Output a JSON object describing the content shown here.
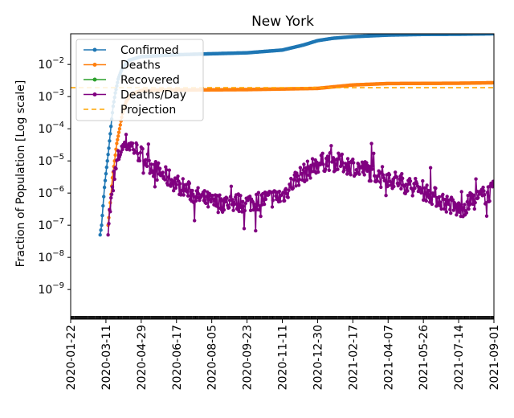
{
  "chart_data": {
    "type": "line",
    "title": "New York",
    "ylabel": "Fraction of Population [Log scale]",
    "xlabel": "",
    "yscale": "log",
    "ylim": [
      1.2e-10,
      0.09
    ],
    "xlim": [
      "2020-01-22",
      "2021-09-01"
    ],
    "x_ticks": [
      "2020-01-22",
      "2020-03-11",
      "2020-04-29",
      "2020-06-17",
      "2020-08-05",
      "2020-09-23",
      "2020-11-11",
      "2020-12-30",
      "2021-02-17",
      "2021-04-07",
      "2021-05-26",
      "2021-07-14",
      "2021-09-01"
    ],
    "y_ticks": [
      {
        "value": 1e-09,
        "base": "10",
        "exp": "−9"
      },
      {
        "value": 1e-08,
        "base": "10",
        "exp": "−8"
      },
      {
        "value": 1e-07,
        "base": "10",
        "exp": "−7"
      },
      {
        "value": 1e-06,
        "base": "10",
        "exp": "−6"
      },
      {
        "value": 1e-05,
        "base": "10",
        "exp": "−5"
      },
      {
        "value": 0.0001,
        "base": "10",
        "exp": "−4"
      },
      {
        "value": 0.001,
        "base": "10",
        "exp": "−3"
      },
      {
        "value": 0.01,
        "base": "10",
        "exp": "−2"
      }
    ],
    "grid": false,
    "legend_position": "top-left",
    "series": [
      {
        "name": "Confirmed",
        "color": "#1f77b4",
        "marker": "dot",
        "anchors": [
          [
            "2020-03-03",
            5e-08
          ],
          [
            "2020-03-05",
            1e-07
          ],
          [
            "2020-03-07",
            4e-07
          ],
          [
            "2020-03-09",
            1.5e-06
          ],
          [
            "2020-03-11",
            4e-06
          ],
          [
            "2020-03-13",
            1e-05
          ],
          [
            "2020-03-15",
            2.5e-05
          ],
          [
            "2020-03-17",
            7e-05
          ],
          [
            "2020-03-19",
            0.0002
          ],
          [
            "2020-03-21",
            0.0005
          ],
          [
            "2020-03-24",
            0.0013
          ],
          [
            "2020-03-28",
            0.0035
          ],
          [
            "2020-04-03",
            0.008
          ],
          [
            "2020-04-12",
            0.0135
          ],
          [
            "2020-04-29",
            0.0175
          ],
          [
            "2020-06-17",
            0.02
          ],
          [
            "2020-08-05",
            0.0215
          ],
          [
            "2020-09-23",
            0.023
          ],
          [
            "2020-11-11",
            0.028
          ],
          [
            "2020-12-10",
            0.04
          ],
          [
            "2020-12-30",
            0.055
          ],
          [
            "2021-01-20",
            0.065
          ],
          [
            "2021-02-17",
            0.073
          ],
          [
            "2021-04-07",
            0.082
          ],
          [
            "2021-05-26",
            0.086
          ],
          [
            "2021-07-14",
            0.087
          ],
          [
            "2021-09-01",
            0.09
          ]
        ]
      },
      {
        "name": "Deaths",
        "color": "#ff7f0e",
        "marker": "dot",
        "anchors": [
          [
            "2020-03-14",
            1e-07
          ],
          [
            "2020-03-17",
            5e-07
          ],
          [
            "2020-03-20",
            3e-06
          ],
          [
            "2020-03-23",
            1e-05
          ],
          [
            "2020-03-26",
            3.5e-05
          ],
          [
            "2020-03-30",
            0.0001
          ],
          [
            "2020-04-03",
            0.0003
          ],
          [
            "2020-04-08",
            0.0007
          ],
          [
            "2020-04-15",
            0.0012
          ],
          [
            "2020-04-29",
            0.00155
          ],
          [
            "2020-06-17",
            0.0016
          ],
          [
            "2020-09-23",
            0.00165
          ],
          [
            "2020-12-30",
            0.0018
          ],
          [
            "2021-02-17",
            0.0023
          ],
          [
            "2021-04-07",
            0.00255
          ],
          [
            "2021-07-14",
            0.0026
          ],
          [
            "2021-09-01",
            0.0027
          ]
        ]
      },
      {
        "name": "Recovered",
        "color": "#2ca02c",
        "marker": "dot",
        "anchors": []
      },
      {
        "name": "Deaths/Day",
        "color": "#800080",
        "marker": "dot",
        "noise": true,
        "anchors": [
          [
            "2020-03-14",
            1e-07
          ],
          [
            "2020-03-18",
            5e-07
          ],
          [
            "2020-03-22",
            2e-06
          ],
          [
            "2020-03-26",
            8e-06
          ],
          [
            "2020-04-01",
            2.5e-05
          ],
          [
            "2020-04-08",
            3.7e-05
          ],
          [
            "2020-04-15",
            3e-05
          ],
          [
            "2020-04-29",
            1.5e-05
          ],
          [
            "2020-05-20",
            5e-06
          ],
          [
            "2020-06-17",
            2e-06
          ],
          [
            "2020-07-15",
            8e-07
          ],
          [
            "2020-08-05",
            5e-07
          ],
          [
            "2020-09-23",
            5e-07
          ],
          [
            "2020-11-11",
            8e-07
          ],
          [
            "2020-12-01",
            3e-06
          ],
          [
            "2020-12-30",
            8e-06
          ],
          [
            "2021-01-15",
            1e-05
          ],
          [
            "2021-02-17",
            7e-06
          ],
          [
            "2021-04-07",
            3e-06
          ],
          [
            "2021-05-26",
            1.2e-06
          ],
          [
            "2021-06-20",
            6e-07
          ],
          [
            "2021-07-14",
            3e-07
          ],
          [
            "2021-08-05",
            6e-07
          ],
          [
            "2021-09-01",
            1.2e-06
          ]
        ]
      },
      {
        "name": "Projection",
        "color": "#ffa500",
        "dashed": true,
        "anchors": [
          [
            "2020-01-22",
            0.0019
          ],
          [
            "2021-09-01",
            0.0019
          ]
        ]
      }
    ]
  }
}
